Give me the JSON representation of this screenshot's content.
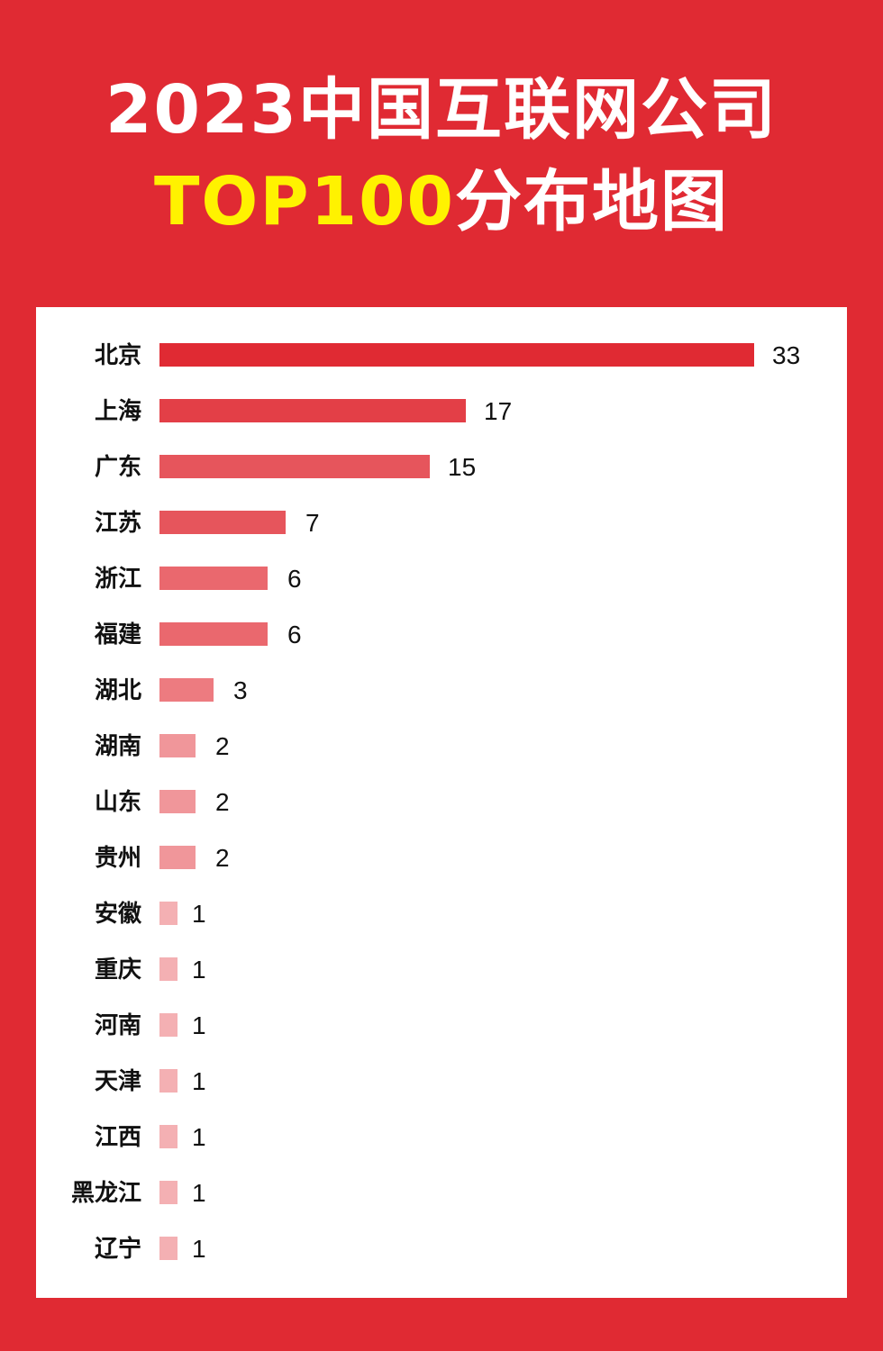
{
  "title_line1": "2023中国互联网公司",
  "title_line2_highlight": "TOP100",
  "title_line2_rest": "分布地图",
  "colors": {
    "background": "#e02a33",
    "title_highlight": "#fff200",
    "panel": "#ffffff"
  },
  "chart_data": {
    "type": "bar",
    "orientation": "horizontal",
    "categories": [
      "北京",
      "上海",
      "广东",
      "江苏",
      "浙江",
      "福建",
      "湖北",
      "湖南",
      "山东",
      "贵州",
      "安徽",
      "重庆",
      "河南",
      "天津",
      "江西",
      "黑龙江",
      "辽宁"
    ],
    "values": [
      33,
      17,
      15,
      7,
      6,
      6,
      3,
      2,
      2,
      2,
      1,
      1,
      1,
      1,
      1,
      1,
      1
    ],
    "bar_colors": [
      "#e02a33",
      "#e33f47",
      "#e6555c",
      "#e6555c",
      "#ea686e",
      "#ea686e",
      "#ed7b80",
      "#f0969a",
      "#f0969a",
      "#f0969a",
      "#f4b0b3",
      "#f4b0b3",
      "#f4b0b3",
      "#f4b0b3",
      "#f4b0b3",
      "#f4b0b3",
      "#f4b0b3"
    ],
    "data_labels": true,
    "grid": false,
    "title": "",
    "xlabel": "",
    "ylabel": ""
  }
}
